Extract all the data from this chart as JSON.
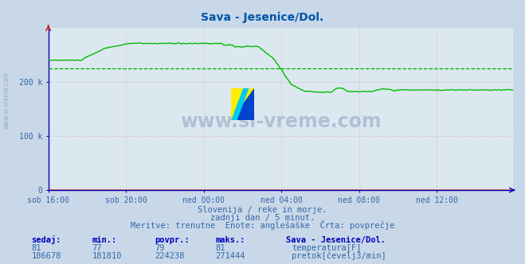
{
  "title": "Sava - Jesenice/Dol.",
  "title_color": "#0055aa",
  "bg_color": "#c8d8e8",
  "plot_bg_color": "#dce8f0",
  "xlabel_color": "#3366aa",
  "ylabel_color": "#3366aa",
  "x_tick_labels": [
    "sob 16:00",
    "sob 20:00",
    "ned 00:00",
    "ned 04:00",
    "ned 08:00",
    "ned 12:00"
  ],
  "x_tick_positions": [
    0,
    48,
    96,
    144,
    192,
    240
  ],
  "ylim": [
    0,
    300000
  ],
  "ytick_values": [
    0,
    100000,
    200000
  ],
  "ytick_labels": [
    "0",
    "100 k",
    "200 k"
  ],
  "total_points": 288,
  "avg_value": 224238,
  "watermark": "www.si-vreme.com",
  "subtitle1": "Slovenija / reke in morje.",
  "subtitle2": "zadnji dan / 5 minut.",
  "subtitle3": "Meritve: trenutne  Enote: anglešaške  Črta: povprečje",
  "footer_headers": [
    "sedaj:",
    "min.:",
    "povpr.:",
    "maks.:"
  ],
  "temp_row": [
    "81",
    "77",
    "79",
    "81"
  ],
  "flow_row": [
    "186678",
    "181810",
    "224238",
    "271444"
  ],
  "station_label": "Sava - Jesenice/Dol.",
  "temp_label": "temperatura[F]",
  "flow_label": "pretok[čevelj3/min]",
  "temp_color": "#cc0000",
  "flow_color": "#00bb00",
  "axis_color": "#0000bb",
  "grid_color": "#ddaaaa",
  "avg_line_color": "#00aa00",
  "text_color": "#3366aa",
  "footer_bold_color": "#0000bb",
  "wm_color": "#8899bb"
}
